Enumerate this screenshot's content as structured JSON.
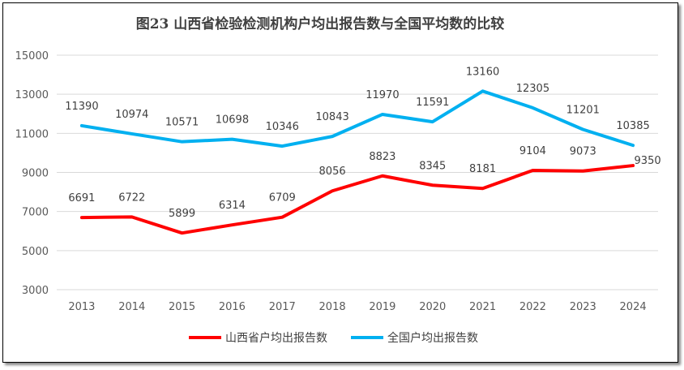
{
  "chart_data": {
    "type": "line",
    "title": "图23 山西省检验检测机构户均出报告数与全国平均数的比较",
    "xlabel": "",
    "ylabel": "",
    "x": [
      "2013",
      "2014",
      "2015",
      "2016",
      "2017",
      "2018",
      "2019",
      "2020",
      "2021",
      "2022",
      "2023",
      "2024"
    ],
    "ylim": [
      3000,
      15000
    ],
    "yticks": [
      "3000",
      "5000",
      "7000",
      "9000",
      "11000",
      "13000",
      "15000"
    ],
    "grid": true,
    "legend": "bottom",
    "series": [
      {
        "name": "山西省户均出报告数",
        "color": "#ff0000",
        "values": [
          6691,
          6722,
          5899,
          6314,
          6709,
          8056,
          8823,
          8345,
          8181,
          9104,
          9073,
          9350
        ]
      },
      {
        "name": "全国户均出报告数",
        "color": "#00b0f0",
        "values": [
          11390,
          10974,
          10571,
          10698,
          10346,
          10843,
          11970,
          11591,
          13160,
          12305,
          11201,
          10385
        ]
      }
    ]
  }
}
